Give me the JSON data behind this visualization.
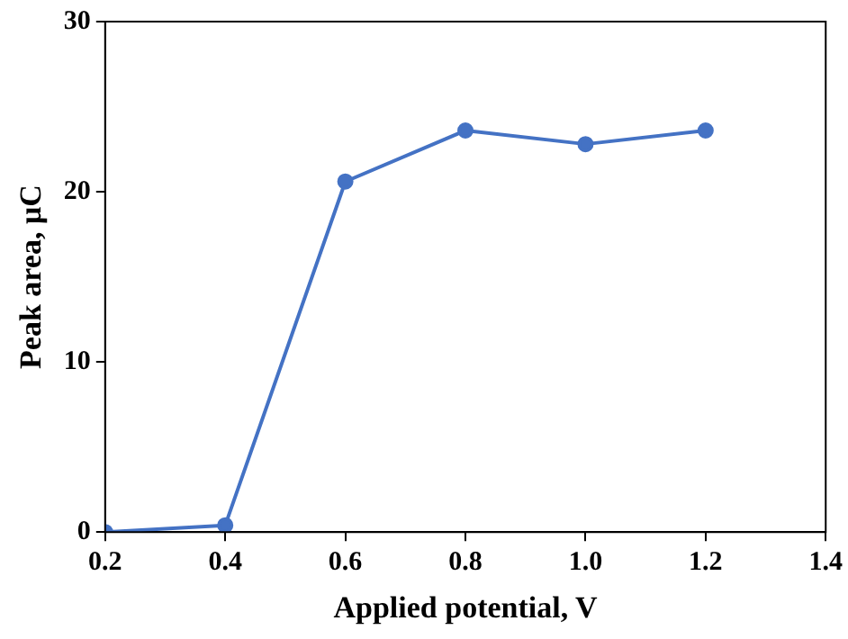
{
  "chart_data": {
    "type": "line",
    "xlabel": "Applied potential, V",
    "ylabel": "Peak area, μC",
    "x": [
      0.2,
      0.4,
      0.6,
      0.8,
      1.0,
      1.2
    ],
    "series": [
      {
        "color": "#4472c4",
        "values": [
          0,
          0.4,
          20.6,
          23.6,
          22.8,
          23.6
        ]
      }
    ],
    "xlim": [
      0.2,
      1.4
    ],
    "xticks": [
      {
        "value": 0.2,
        "label": "0.2"
      },
      {
        "value": 0.4,
        "label": "0.4"
      },
      {
        "value": 0.6,
        "label": "0.6"
      },
      {
        "value": 0.8,
        "label": "0.8"
      },
      {
        "value": 1.0,
        "label": "1.0"
      },
      {
        "value": 1.2,
        "label": "1.2"
      },
      {
        "value": 1.4,
        "label": "1.4"
      }
    ],
    "ylim": [
      0,
      30
    ],
    "yticks": [
      0,
      10,
      20,
      30
    ],
    "grid": false,
    "legend": false,
    "marker": "circle",
    "line_style": "solid"
  }
}
